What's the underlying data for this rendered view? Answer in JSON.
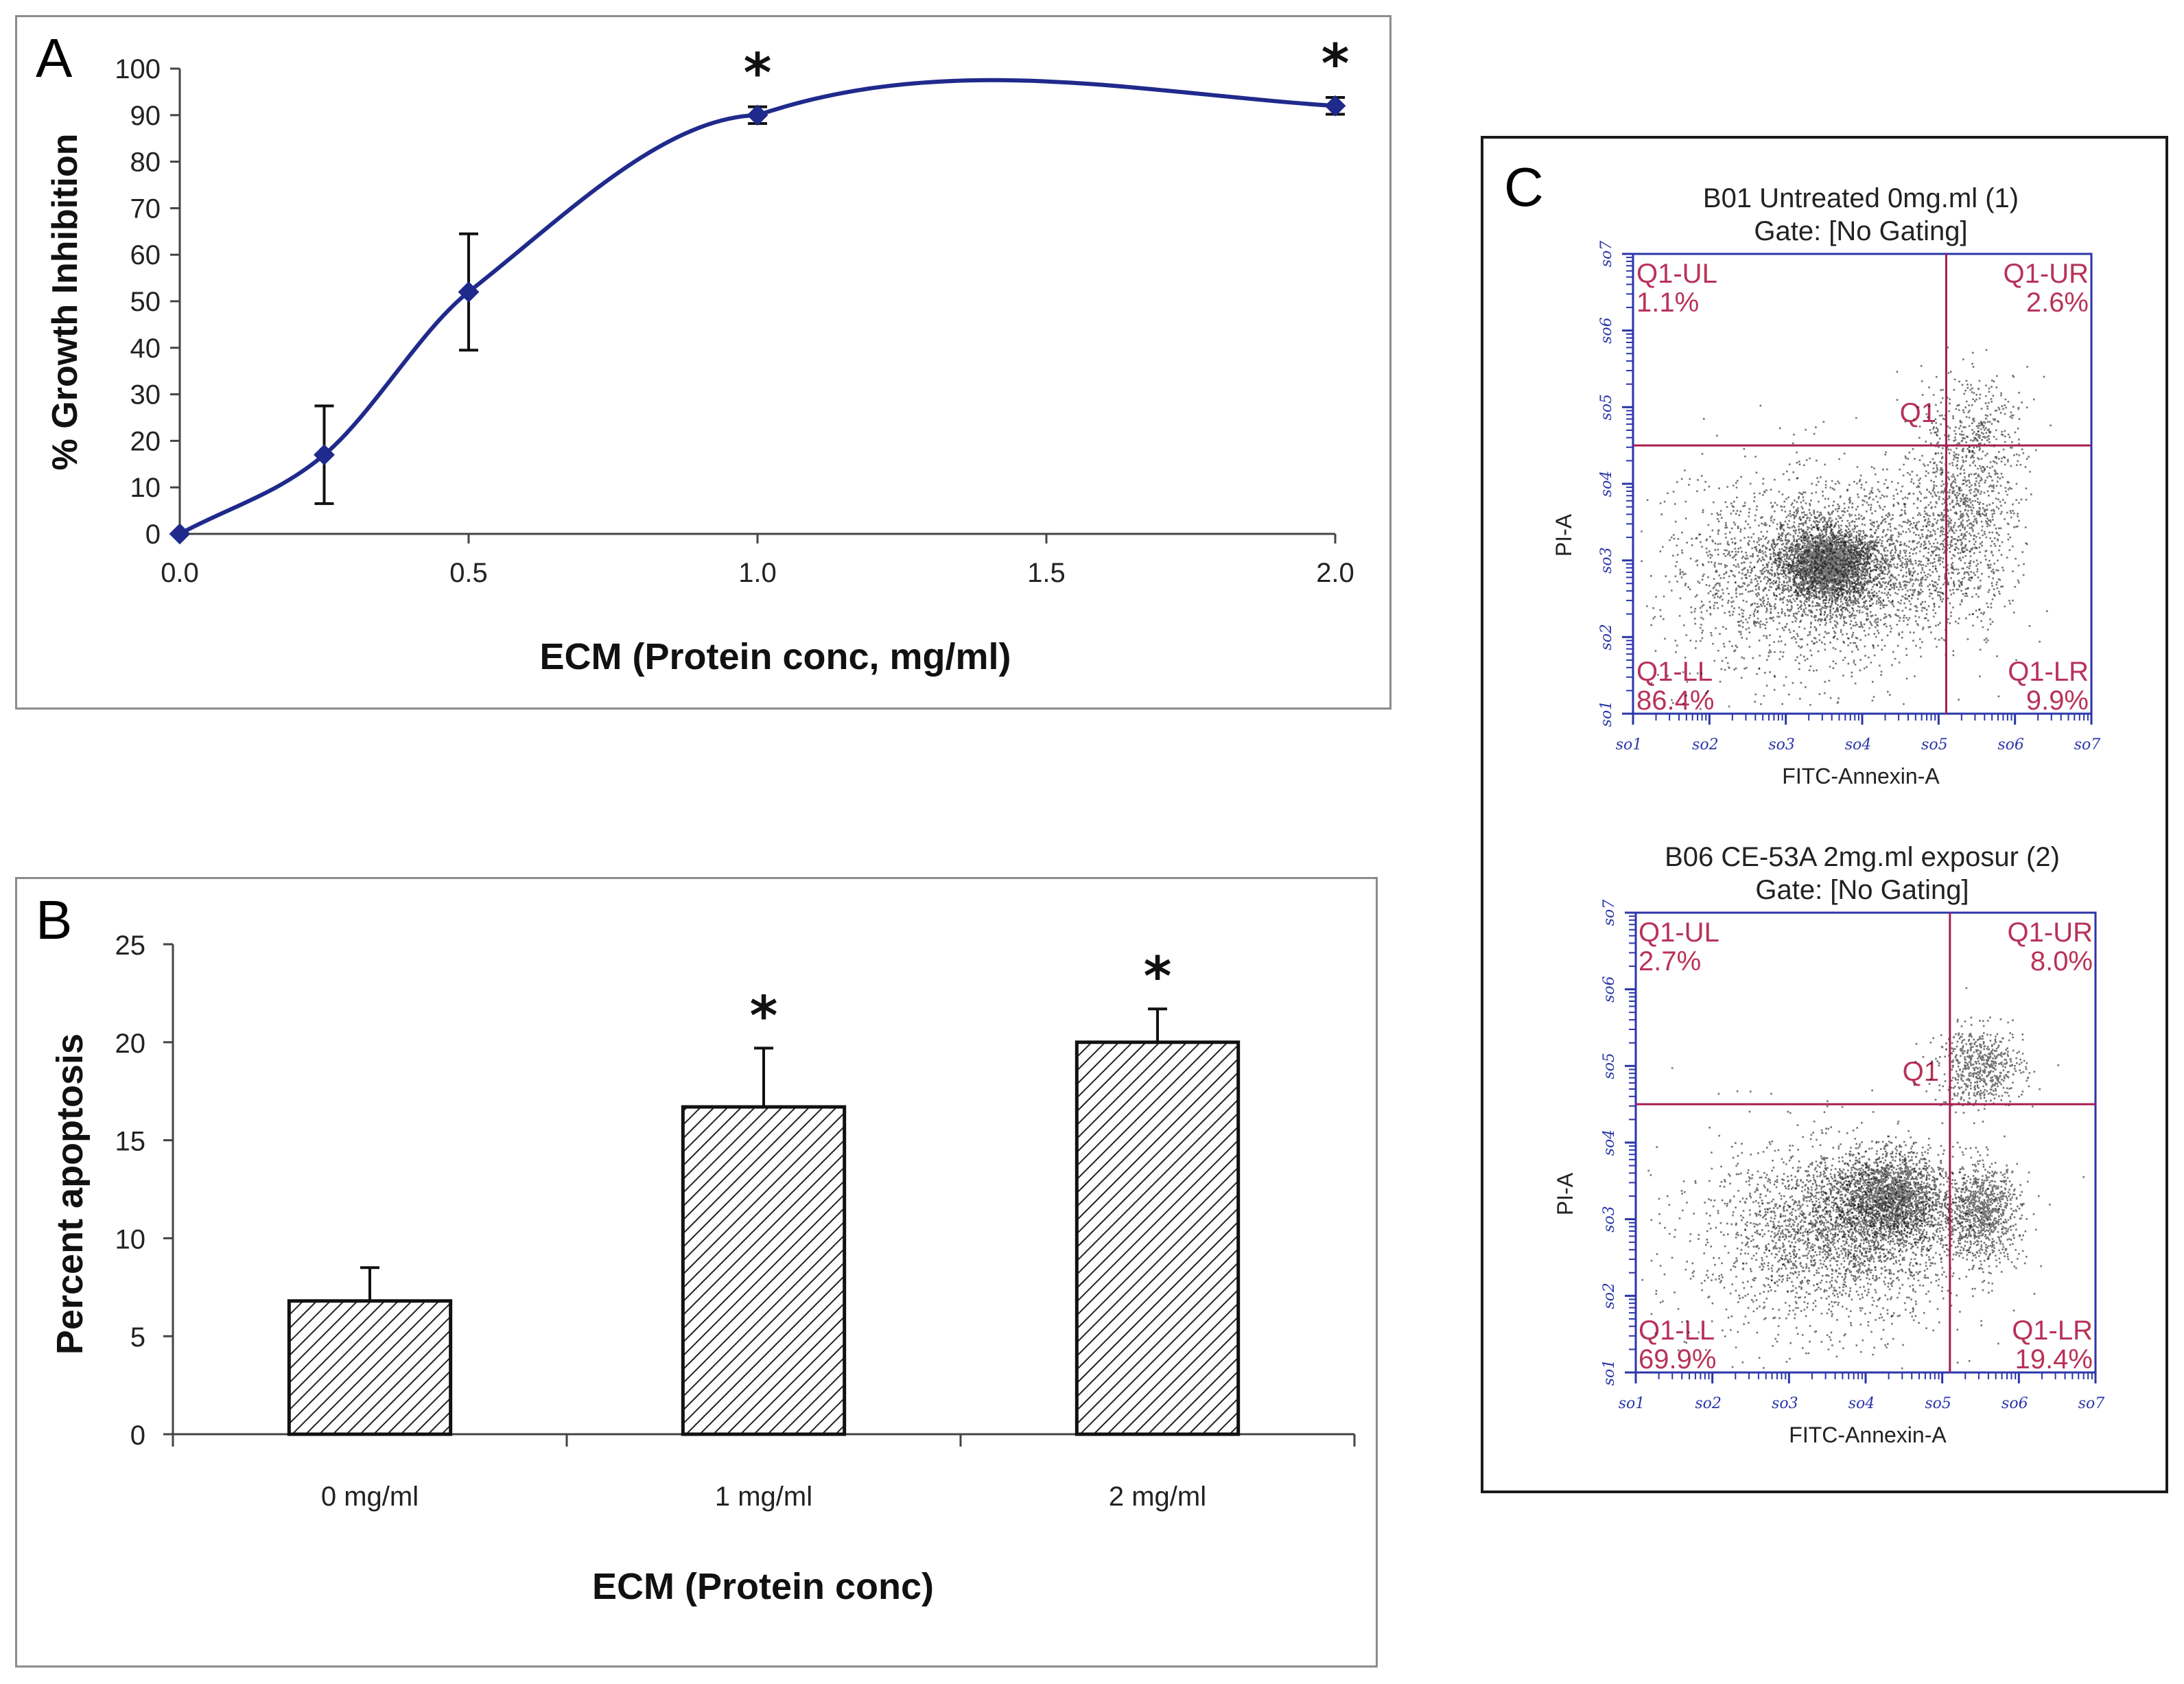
{
  "panels": [
    {
      "letter": "A"
    },
    {
      "letter": "B"
    },
    {
      "letter": "C"
    }
  ],
  "colors": {
    "line": "#1f2a8c",
    "bar_fill": "#ffffff",
    "hatch": "#222222",
    "quad_line": "#a81d52",
    "quad_text": "#b8325a",
    "flow_axis": "#2b36a8"
  },
  "chart_data": [
    {
      "panel": "A",
      "type": "line",
      "xlabel": "ECM (Protein conc, mg/ml)",
      "ylabel": "% Growth Inhibition",
      "xlim": [
        0,
        2
      ],
      "ylim": [
        0,
        100
      ],
      "xticks": [
        "0.0",
        "0.5",
        "1.0",
        "1.5",
        "2.0"
      ],
      "yticks": [
        "0",
        "10",
        "20",
        "30",
        "40",
        "50",
        "60",
        "70",
        "80",
        "90",
        "100"
      ],
      "x": [
        0,
        0.25,
        0.5,
        1.0,
        2.0
      ],
      "y": [
        0,
        17,
        52,
        90,
        92
      ],
      "error": [
        0,
        10.5,
        12.5,
        1.8,
        1.8
      ],
      "significance": [
        "",
        "",
        "",
        "*",
        "*"
      ],
      "marker": "diamond"
    },
    {
      "panel": "B",
      "type": "bar",
      "xlabel": "ECM (Protein conc)",
      "ylabel": "Percent apoptosis",
      "categories": [
        "0 mg/ml",
        "1 mg/ml",
        "2 mg/ml"
      ],
      "values": [
        6.8,
        16.7,
        20.0
      ],
      "error": [
        1.7,
        3.0,
        1.7
      ],
      "significance": [
        "",
        "*",
        "*"
      ],
      "ylim": [
        0,
        25
      ],
      "yticks": [
        "0",
        "5",
        "10",
        "15",
        "20",
        "25"
      ],
      "pattern": "diagonal-hatch"
    },
    {
      "panel": "C",
      "type": "scatter",
      "plots": [
        {
          "title": "B01 Untreated 0mg.ml (1)",
          "gate": "Gate: [No Gating]",
          "xlabel": "FITC-Annexin-A",
          "ylabel": "PI-A",
          "gate_label": "Q1",
          "quadrants": {
            "UL": {
              "label": "Q1-UL",
              "value": "1.1%"
            },
            "UR": {
              "label": "Q1-UR",
              "value": "2.6%"
            },
            "LL": {
              "label": "Q1-LL",
              "value": "86.4%"
            },
            "LR": {
              "label": "Q1-LR",
              "value": "9.9%"
            }
          }
        },
        {
          "title": "B06 CE-53A 2mg.ml exposur (2)",
          "gate": "Gate: [No Gating]",
          "xlabel": "FITC-Annexin-A",
          "ylabel": "PI-A",
          "gate_label": "Q1",
          "quadrants": {
            "UL": {
              "label": "Q1-UL",
              "value": "2.7%"
            },
            "UR": {
              "label": "Q1-UR",
              "value": "8.0%"
            },
            "LL": {
              "label": "Q1-LL",
              "value": "69.9%"
            },
            "LR": {
              "label": "Q1-LR",
              "value": "19.4%"
            }
          }
        }
      ],
      "axis_range_exponents": [
        1,
        7
      ],
      "axis_tick_labels": [
        "10^1",
        "10^2",
        "10^3",
        "10^4",
        "10^5",
        "10^6",
        "10^7"
      ],
      "gate_position_decades": {
        "x": 5.1,
        "y": 4.5
      }
    }
  ]
}
